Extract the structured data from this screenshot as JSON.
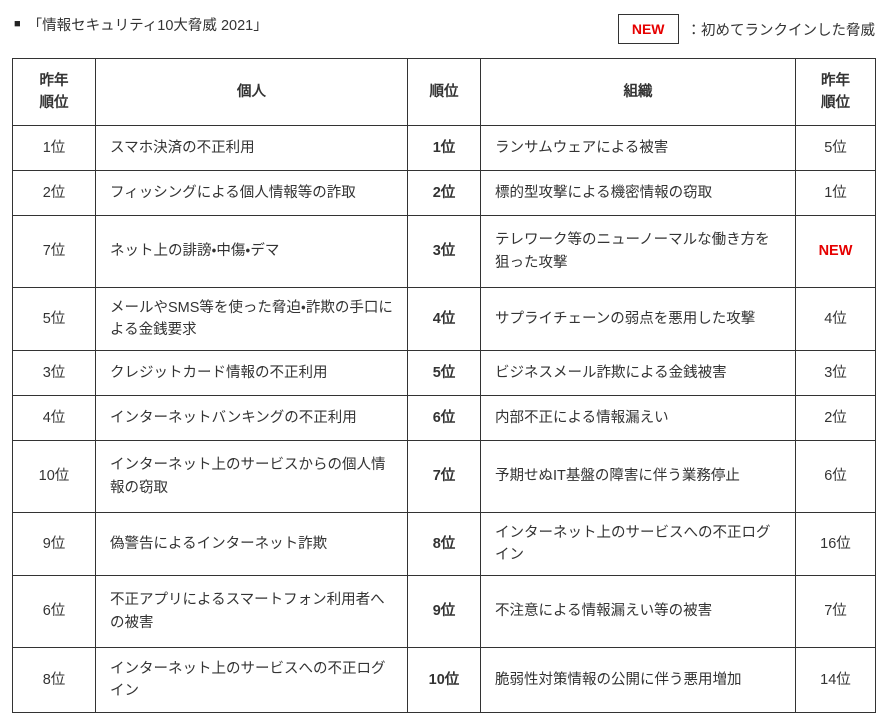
{
  "page": {
    "title_bullet": "■",
    "title": "「情報セキュリティ10大脅威 2021」"
  },
  "legend": {
    "badge_label": "NEW",
    "description": "：初めてランクインした脅威"
  },
  "colors": {
    "new_accent": "#e60000",
    "text": "#333333",
    "border": "#333333",
    "background": "#ffffff"
  },
  "table": {
    "headers": {
      "last_year_left": "昨年\n順位",
      "individual": "個人",
      "rank": "順位",
      "organization": "組織",
      "last_year_right": "昨年\n順位"
    },
    "rows": [
      {
        "ly_ind": "1位",
        "individual": "スマホ決済の不正利用",
        "rank": "1位",
        "organization": "ランサムウェアによる被害",
        "ly_org": "5位"
      },
      {
        "ly_ind": "2位",
        "individual": "フィッシングによる個人情報等の詐取",
        "rank": "2位",
        "organization": "標的型攻撃による機密情報の窃取",
        "ly_org": "1位"
      },
      {
        "ly_ind": "7位",
        "individual": "ネット上の誹謗・中傷・デマ",
        "rank": "3位",
        "organization": "テレワーク等のニューノーマルな働き方を狙った攻撃",
        "ly_org": "NEW"
      },
      {
        "ly_ind": "5位",
        "individual": "メールやSMS等を使った脅迫・詐欺の手口による金銭要求",
        "rank": "4位",
        "organization": "サプライチェーンの弱点を悪用した攻撃",
        "ly_org": "4位"
      },
      {
        "ly_ind": "3位",
        "individual": "クレジットカード情報の不正利用",
        "rank": "5位",
        "organization": "ビジネスメール詐欺による金銭被害",
        "ly_org": "3位"
      },
      {
        "ly_ind": "4位",
        "individual": "インターネットバンキングの不正利用",
        "rank": "6位",
        "organization": "内部不正による情報漏えい",
        "ly_org": "2位"
      },
      {
        "ly_ind": "10位",
        "individual": "インターネット上のサービスからの個人情報の窃取",
        "rank": "7位",
        "organization": "予期せぬIT基盤の障害に伴う業務停止",
        "ly_org": "6位"
      },
      {
        "ly_ind": "9位",
        "individual": "偽警告によるインターネット詐欺",
        "rank": "8位",
        "organization": "インターネット上のサービスへの不正ログイン",
        "ly_org": "16位"
      },
      {
        "ly_ind": "6位",
        "individual": "不正アプリによるスマートフォン利用者への被害",
        "rank": "9位",
        "organization": "不注意による情報漏えい等の被害",
        "ly_org": "7位"
      },
      {
        "ly_ind": "8位",
        "individual": "インターネット上のサービスへの不正ログイン",
        "rank": "10位",
        "organization": "脆弱性対策情報の公開に伴う悪用増加",
        "ly_org": "14位"
      }
    ]
  }
}
